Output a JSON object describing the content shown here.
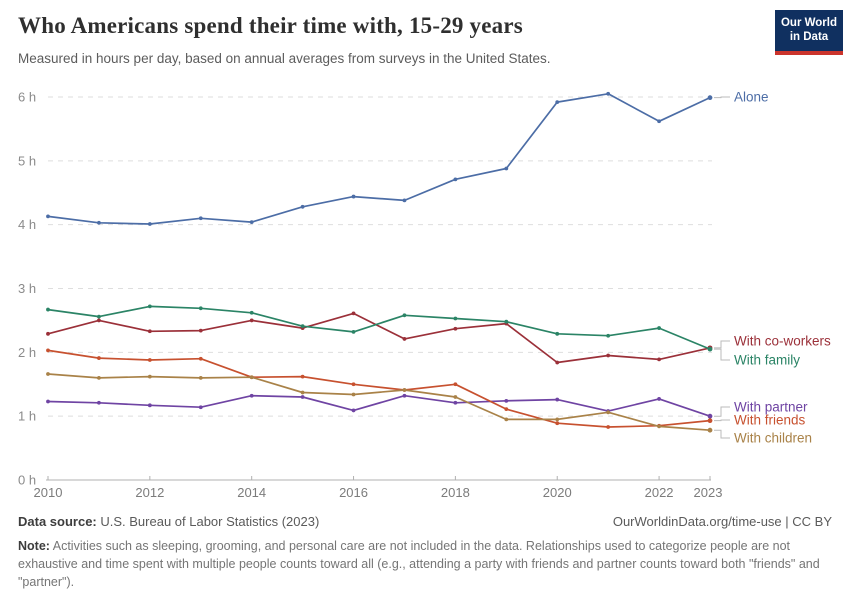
{
  "header": {
    "title": "Who Americans spend their time with, 15-29 years",
    "subtitle": "Measured in hours per day, based on annual averages from surveys in the United States."
  },
  "logo": {
    "line1": "Our World",
    "line2": "in Data",
    "bg_color": "#103060",
    "accent_color": "#cb342c"
  },
  "chart_data": {
    "type": "line",
    "x": [
      2010,
      2011,
      2012,
      2013,
      2014,
      2015,
      2016,
      2017,
      2018,
      2019,
      2020,
      2021,
      2022,
      2023
    ],
    "x_tick_labels": [
      "2010",
      "2012",
      "2014",
      "2016",
      "2018",
      "2020",
      "2022",
      "2023"
    ],
    "y_ticks": [
      "0 h",
      "1 h",
      "2 h",
      "3 h",
      "4 h",
      "5 h",
      "6 h"
    ],
    "ylim": [
      0,
      6
    ],
    "ylabel": "",
    "xlabel": "",
    "grid": "horizontal-dashed",
    "legend_position": "right-of-lines",
    "series": [
      {
        "name": "Alone",
        "color": "#4C6DA6",
        "values": [
          4.13,
          4.03,
          4.01,
          4.1,
          4.04,
          4.28,
          4.44,
          4.38,
          4.71,
          4.88,
          5.92,
          6.05,
          5.62,
          5.99
        ]
      },
      {
        "name": "With co-workers",
        "color": "#9B3039",
        "values": [
          2.29,
          2.5,
          2.33,
          2.34,
          2.5,
          2.38,
          2.61,
          2.21,
          2.37,
          2.45,
          1.84,
          1.95,
          1.89,
          2.07
        ]
      },
      {
        "name": "With family",
        "color": "#2B8466",
        "values": [
          2.67,
          2.56,
          2.72,
          2.69,
          2.62,
          2.41,
          2.32,
          2.58,
          2.53,
          2.48,
          2.29,
          2.26,
          2.38,
          2.05
        ]
      },
      {
        "name": "With partner",
        "color": "#6F44A3",
        "values": [
          1.23,
          1.21,
          1.17,
          1.14,
          1.32,
          1.3,
          1.09,
          1.32,
          1.21,
          1.24,
          1.26,
          1.08,
          1.27,
          1.0
        ]
      },
      {
        "name": "With friends",
        "color": "#C7512F",
        "values": [
          2.03,
          1.91,
          1.88,
          1.9,
          1.61,
          1.62,
          1.5,
          1.41,
          1.5,
          1.11,
          0.89,
          0.83,
          0.85,
          0.93
        ]
      },
      {
        "name": "With children",
        "color": "#A98248",
        "values": [
          1.66,
          1.6,
          1.62,
          1.6,
          1.61,
          1.37,
          1.34,
          1.41,
          1.3,
          0.95,
          0.95,
          1.06,
          0.84,
          0.78
        ]
      }
    ]
  },
  "footer": {
    "source_label": "Data source:",
    "source_text": " U.S. Bureau of Labor Statistics (2023)",
    "credit": "OurWorldinData.org/time-use | CC BY",
    "note_label": "Note:",
    "note_text": " Activities such as sleeping, grooming, and personal care are not included in the data. Relationships used to categorize people are not exhaustive and time spent with multiple people counts toward all (e.g., attending a party with friends and partner counts toward both \"friends\" and \"partner\")."
  }
}
